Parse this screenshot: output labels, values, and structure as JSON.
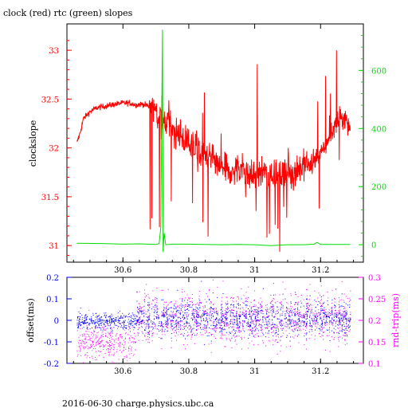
{
  "title": "clock (red) rtc (green) slopes",
  "footer": "2016-06-30  charge.physics.ubc.ca",
  "colors": {
    "clock": "#ff0000",
    "rtc": "#00dd00",
    "offset": "#0000ff",
    "rndtrip": "#ff00ff",
    "axis": "#000000"
  },
  "chart_data": [
    {
      "type": "line",
      "title": "clock (red) rtc (green) slopes",
      "ylabel": "clockslope",
      "x_ticks": [
        "30.6",
        "30.8",
        "31",
        "31.2"
      ],
      "x_tick_values": [
        30.6,
        30.8,
        31.0,
        31.2
      ],
      "xlim": [
        30.43,
        31.33
      ],
      "y_left_lim": [
        30.83,
        33.27
      ],
      "y_left_ticks": [
        "31",
        "31.5",
        "32",
        "32.5",
        "33"
      ],
      "y_left_tick_values": [
        31,
        31.5,
        32,
        32.5,
        33
      ],
      "y_right_lim": [
        -60,
        760
      ],
      "y_right_ticks": [
        "0",
        "200",
        "400",
        "600"
      ],
      "y_right_tick_values": [
        0,
        200,
        400,
        600
      ],
      "grid": false,
      "series": [
        {
          "name": "clock",
          "axis": "left",
          "x": [
            30.46,
            30.47,
            30.48,
            30.5,
            30.52,
            30.55,
            30.58,
            30.6,
            30.62,
            30.64,
            30.66,
            30.68,
            30.7,
            30.71,
            30.72,
            30.73,
            30.74,
            30.76,
            30.78,
            30.8,
            30.82,
            30.84,
            30.86,
            30.88,
            30.9,
            30.92,
            30.94,
            30.96,
            30.98,
            31.0,
            31.02,
            31.04,
            31.06,
            31.08,
            31.1,
            31.12,
            31.14,
            31.16,
            31.18,
            31.2,
            31.22,
            31.24,
            31.26,
            31.28,
            31.29
          ],
          "y": [
            32.05,
            32.15,
            32.3,
            32.37,
            32.41,
            32.43,
            32.45,
            32.46,
            32.46,
            32.44,
            32.45,
            32.42,
            32.4,
            32.35,
            32.3,
            32.28,
            32.25,
            32.18,
            32.12,
            32.05,
            32.0,
            31.95,
            31.9,
            31.85,
            31.8,
            31.75,
            31.77,
            31.8,
            31.74,
            31.7,
            31.78,
            31.72,
            31.74,
            31.73,
            31.74,
            31.75,
            31.8,
            31.83,
            31.87,
            31.94,
            32.05,
            32.2,
            32.33,
            32.28,
            32.18
          ]
        },
        {
          "name": "rtc",
          "axis": "right",
          "x": [
            30.46,
            30.55,
            30.6,
            30.65,
            30.7,
            30.71,
            30.715,
            30.72,
            30.722,
            30.725,
            30.73,
            30.75,
            30.8,
            30.85,
            30.9,
            30.95,
            31.0,
            31.05,
            31.1,
            31.15,
            31.18,
            31.19,
            31.2,
            31.25,
            31.29
          ],
          "y": [
            5,
            4,
            2,
            3,
            1,
            4,
            60,
            740,
            -25,
            40,
            0,
            2,
            2,
            1,
            0,
            1,
            0,
            -3,
            0,
            0,
            2,
            8,
            1,
            1,
            1
          ]
        }
      ]
    },
    {
      "type": "scatter",
      "xlim": [
        30.43,
        31.33
      ],
      "x_ticks": [
        "30.6",
        "30.8",
        "31",
        "31.2"
      ],
      "x_tick_values": [
        30.6,
        30.8,
        31.0,
        31.2
      ],
      "ylabel": "offset(ms)",
      "y_left_lim": [
        -0.2,
        0.2
      ],
      "y_left_ticks": [
        "-0.2",
        "-0.1",
        "0",
        "0.1",
        "0.2"
      ],
      "y_left_tick_values": [
        -0.2,
        -0.1,
        0,
        0.1,
        0.2
      ],
      "y2label": "rnd-trip(ms)",
      "y_right_lim": [
        0.1,
        0.3
      ],
      "y_right_ticks": [
        "0.1",
        "0.15",
        "0.2",
        "0.25",
        "0.3"
      ],
      "y_right_tick_values": [
        0.1,
        0.15,
        0.2,
        0.25,
        0.3
      ],
      "grid": false,
      "series": [
        {
          "name": "offset",
          "axis": "left",
          "segments": [
            {
              "x_from": 30.46,
              "x_to": 30.64,
              "center": 0.0,
              "spread": 0.02
            },
            {
              "x_from": 30.64,
              "x_to": 31.29,
              "center": 0.01,
              "spread": 0.04
            }
          ]
        },
        {
          "name": "rnd-trip",
          "axis": "right",
          "segments": [
            {
              "x_from": 30.46,
              "x_to": 30.64,
              "center": 0.15,
              "spread": 0.02
            },
            {
              "x_from": 30.64,
              "x_to": 31.29,
              "center": 0.205,
              "spread": 0.03
            }
          ]
        }
      ]
    }
  ]
}
